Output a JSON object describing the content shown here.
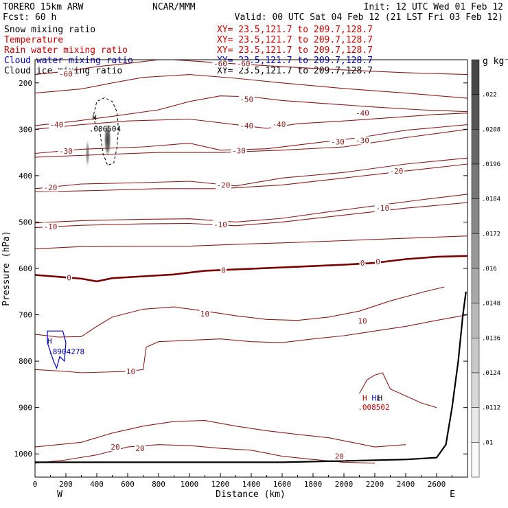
{
  "header": {
    "model": "TORERO  15km ARW",
    "center": "NCAR/MMM",
    "init": "Init: 12 UTC Wed 01 Feb 12",
    "fcst": "Fcst:   60 h",
    "valid": "Valid: 00 UTC Sat 04 Feb 12 (21 LST Fri 03 Feb 12)"
  },
  "fields": [
    {
      "name": "Snow mixing ratio",
      "xy": "XY=  23.5,121.7 to 209.7,128.7",
      "name_color": "#000000",
      "xy_color": "#cc0000"
    },
    {
      "name": "Temperature",
      "xy": "XY=  23.5,121.7 to 209.7,128.7",
      "name_color": "#cc0000",
      "xy_color": "#cc0000"
    },
    {
      "name": "Rain water mixing ratio",
      "xy": "XY=  23.5,121.7 to 209.7,128.7",
      "name_color": "#cc0000",
      "xy_color": "#cc0000"
    },
    {
      "name": "Cloud water mixing ratio",
      "xy": "XY=  23.5,121.7 to 209.7,128.7",
      "name_color": "#0000aa",
      "xy_color": "#0000aa"
    },
    {
      "name": "Cloud ice mixing ratio",
      "xy": "XY=  23.5,121.7 to 209.7,128.7",
      "name_color": "#000000",
      "xy_color": "#000000"
    }
  ],
  "colors": {
    "temperature": "#8b1a1a",
    "zero_isotherm": "#7a0000",
    "terrain": "#000000",
    "cloud_water": "#0000cc",
    "snow": "#000000",
    "rain": "#cc0000"
  },
  "chart_data": {
    "type": "cross-section",
    "xlabel": "Distance (km)",
    "ylabel": "Pressure (hPa)",
    "x_range": [
      0,
      2800
    ],
    "y_range": [
      150,
      1050
    ],
    "x_ticks": [
      "0",
      "200",
      "400",
      "600",
      "800",
      "1000",
      "1200",
      "1400",
      "1600",
      "1800",
      "2000",
      "2200",
      "2400",
      "2600"
    ],
    "x_tick_values": [
      0,
      200,
      400,
      600,
      800,
      1000,
      1200,
      1400,
      1600,
      1800,
      2000,
      2200,
      2400,
      2600
    ],
    "y_ticks": [
      "200",
      "300",
      "400",
      "500",
      "600",
      "700",
      "800",
      "900",
      "1000"
    ],
    "y_tick_values": [
      200,
      300,
      400,
      500,
      600,
      700,
      800,
      900,
      1000
    ],
    "end_labels": {
      "left": "W",
      "right": "E"
    },
    "isotherms": [
      {
        "label": "-60",
        "points": [
          [
            0,
            182
          ],
          [
            200,
            175
          ],
          [
            400,
            165
          ],
          [
            600,
            158
          ],
          [
            800,
            150
          ]
        ]
      },
      {
        "label": "-60",
        "points": [
          [
            900,
            150
          ],
          [
            1200,
            157
          ],
          [
            1600,
            165
          ],
          [
            2000,
            172
          ],
          [
            2400,
            178
          ],
          [
            2800,
            182
          ]
        ]
      },
      {
        "label": "-50",
        "points": [
          [
            0,
            222
          ],
          [
            300,
            213
          ],
          [
            500,
            200
          ],
          [
            700,
            188
          ],
          [
            1000,
            182
          ],
          [
            1300,
            190
          ],
          [
            1600,
            200
          ],
          [
            2000,
            212
          ],
          [
            2400,
            222
          ],
          [
            2800,
            233
          ]
        ]
      },
      {
        "label": "-40",
        "points": [
          [
            0,
            292
          ],
          [
            250,
            283
          ],
          [
            500,
            272
          ],
          [
            800,
            258
          ],
          [
            1000,
            240
          ],
          [
            1200,
            228
          ],
          [
            1400,
            230
          ],
          [
            1600,
            238
          ],
          [
            1900,
            245
          ],
          [
            2200,
            252
          ],
          [
            2500,
            258
          ],
          [
            2800,
            262
          ]
        ]
      },
      {
        "label": "-40",
        "points": [
          [
            0,
            300
          ],
          [
            300,
            290
          ],
          [
            600,
            282
          ],
          [
            1000,
            278
          ],
          [
            1300,
            290
          ],
          [
            1500,
            298
          ],
          [
            1700,
            288
          ],
          [
            2000,
            282
          ],
          [
            2300,
            275
          ],
          [
            2600,
            268
          ],
          [
            2800,
            265
          ]
        ]
      },
      {
        "label": "-30",
        "points": [
          [
            0,
            352
          ],
          [
            300,
            343
          ],
          [
            700,
            338
          ],
          [
            1000,
            330
          ],
          [
            1200,
            345
          ],
          [
            1500,
            342
          ],
          [
            1800,
            330
          ],
          [
            2100,
            318
          ],
          [
            2400,
            302
          ],
          [
            2800,
            290
          ]
        ]
      },
      {
        "label": "-30",
        "points": [
          [
            0,
            360
          ],
          [
            400,
            355
          ],
          [
            800,
            350
          ],
          [
            1200,
            350
          ],
          [
            1600,
            345
          ],
          [
            2000,
            338
          ],
          [
            2400,
            318
          ],
          [
            2800,
            300
          ]
        ]
      },
      {
        "label": "-20",
        "points": [
          [
            0,
            428
          ],
          [
            300,
            418
          ],
          [
            700,
            415
          ],
          [
            1000,
            412
          ],
          [
            1300,
            422
          ],
          [
            1600,
            405
          ],
          [
            2000,
            393
          ],
          [
            2400,
            375
          ],
          [
            2800,
            362
          ]
        ]
      },
      {
        "label": "-20",
        "points": [
          [
            0,
            435
          ],
          [
            400,
            432
          ],
          [
            800,
            428
          ],
          [
            1200,
            428
          ],
          [
            1600,
            420
          ],
          [
            2000,
            405
          ],
          [
            2400,
            390
          ],
          [
            2800,
            375
          ]
        ]
      },
      {
        "label": "-10",
        "points": [
          [
            0,
            502
          ],
          [
            300,
            497
          ],
          [
            700,
            494
          ],
          [
            1000,
            493
          ],
          [
            1300,
            500
          ],
          [
            1600,
            492
          ],
          [
            1900,
            478
          ],
          [
            2200,
            465
          ],
          [
            2500,
            452
          ],
          [
            2800,
            440
          ]
        ]
      },
      {
        "label": "-10",
        "points": [
          [
            0,
            512
          ],
          [
            300,
            507
          ],
          [
            700,
            504
          ],
          [
            1000,
            503
          ],
          [
            1300,
            508
          ],
          [
            1600,
            500
          ],
          [
            2000,
            485
          ],
          [
            2400,
            470
          ],
          [
            2800,
            458
          ]
        ]
      },
      {
        "label": "-10",
        "points": [
          [
            0,
            558
          ],
          [
            300,
            553
          ],
          [
            700,
            552
          ],
          [
            1000,
            552
          ],
          [
            1300,
            548
          ],
          [
            1600,
            545
          ],
          [
            2000,
            540
          ],
          [
            2400,
            535
          ],
          [
            2800,
            530
          ]
        ]
      },
      {
        "label": "0",
        "points": [
          [
            0,
            614
          ],
          [
            150,
            618
          ],
          [
            300,
            622
          ],
          [
            400,
            628
          ],
          [
            500,
            621
          ],
          [
            700,
            617
          ],
          [
            900,
            613
          ],
          [
            1100,
            605
          ],
          [
            1300,
            602
          ],
          [
            1600,
            598
          ],
          [
            2000,
            592
          ],
          [
            2200,
            588
          ],
          [
            2400,
            580
          ],
          [
            2600,
            575
          ],
          [
            2800,
            573
          ]
        ]
      },
      {
        "label": "10",
        "points": [
          [
            0,
            742
          ],
          [
            150,
            748
          ],
          [
            300,
            747
          ],
          [
            400,
            725
          ],
          [
            500,
            705
          ],
          [
            700,
            688
          ],
          [
            900,
            683
          ],
          [
            1100,
            692
          ],
          [
            1300,
            702
          ],
          [
            1500,
            710
          ],
          [
            1700,
            712
          ],
          [
            1900,
            705
          ],
          [
            2100,
            692
          ],
          [
            2300,
            670
          ],
          [
            2500,
            652
          ],
          [
            2650,
            640
          ]
        ]
      },
      {
        "label": "10",
        "points": [
          [
            0,
            818
          ],
          [
            200,
            822
          ],
          [
            300,
            825
          ],
          [
            600,
            822
          ],
          [
            700,
            818
          ],
          [
            720,
            770
          ],
          [
            800,
            758
          ],
          [
            1000,
            755
          ],
          [
            1200,
            752
          ],
          [
            1400,
            758
          ],
          [
            1600,
            760
          ],
          [
            1800,
            752
          ],
          [
            2000,
            745
          ],
          [
            2200,
            735
          ],
          [
            2400,
            725
          ],
          [
            2600,
            712
          ],
          [
            2800,
            700
          ]
        ]
      },
      {
        "label": "10",
        "points": [
          [
            2100,
            870
          ],
          [
            2150,
            840
          ],
          [
            2200,
            830
          ],
          [
            2250,
            825
          ],
          [
            2300,
            860
          ],
          [
            2400,
            875
          ],
          [
            2500,
            890
          ],
          [
            2600,
            900
          ]
        ]
      },
      {
        "label": "20",
        "points": [
          [
            0,
            985
          ],
          [
            300,
            975
          ],
          [
            500,
            955
          ],
          [
            700,
            940
          ],
          [
            900,
            930
          ],
          [
            1100,
            928
          ],
          [
            1300,
            940
          ],
          [
            1500,
            950
          ],
          [
            1700,
            958
          ],
          [
            1900,
            965
          ],
          [
            2050,
            975
          ],
          [
            2200,
            985
          ],
          [
            2400,
            980
          ]
        ]
      },
      {
        "label": "20",
        "points": [
          [
            0,
            1020
          ],
          [
            200,
            1013
          ],
          [
            400,
            1002
          ],
          [
            600,
            985
          ],
          [
            800,
            980
          ],
          [
            1000,
            982
          ],
          [
            1200,
            988
          ],
          [
            1400,
            992
          ],
          [
            1600,
            1005
          ],
          [
            1800,
            1012
          ],
          [
            2000,
            1018
          ],
          [
            2200,
            1020
          ]
        ]
      }
    ],
    "isotherm_labels": [
      {
        "text": "-60",
        "x": 200,
        "y": 180
      },
      {
        "text": "-60",
        "x": 1200,
        "y": 158
      },
      {
        "text": "-60",
        "x": 1350,
        "y": 158
      },
      {
        "text": "-50",
        "x": 1370,
        "y": 235
      },
      {
        "text": "-40",
        "x": 140,
        "y": 290
      },
      {
        "text": "-40",
        "x": 1370,
        "y": 292
      },
      {
        "text": "-40",
        "x": 1580,
        "y": 289
      },
      {
        "text": "-40",
        "x": 2120,
        "y": 265
      },
      {
        "text": "-30",
        "x": 200,
        "y": 347
      },
      {
        "text": "-30",
        "x": 1320,
        "y": 346
      },
      {
        "text": "-30",
        "x": 1960,
        "y": 327
      },
      {
        "text": "-30",
        "x": 2120,
        "y": 324
      },
      {
        "text": "-20",
        "x": 100,
        "y": 425
      },
      {
        "text": "-20",
        "x": 1220,
        "y": 420
      },
      {
        "text": "-20",
        "x": 2340,
        "y": 390
      },
      {
        "text": "-10",
        "x": 100,
        "y": 510
      },
      {
        "text": "-10",
        "x": 1200,
        "y": 505
      },
      {
        "text": "-10",
        "x": 2250,
        "y": 470
      },
      {
        "text": "0",
        "x": 220,
        "y": 620
      },
      {
        "text": "0",
        "x": 1220,
        "y": 604
      },
      {
        "text": "0",
        "x": 2120,
        "y": 588
      },
      {
        "text": "0",
        "x": 2220,
        "y": 585
      },
      {
        "text": "10",
        "x": 1100,
        "y": 698
      },
      {
        "text": "10",
        "x": 2120,
        "y": 713
      },
      {
        "text": "10",
        "x": 620,
        "y": 822
      },
      {
        "text": "20",
        "x": 520,
        "y": 985
      },
      {
        "text": "20",
        "x": 680,
        "y": 988
      },
      {
        "text": "20",
        "x": 1970,
        "y": 1005
      }
    ],
    "terrain_surface": [
      [
        0,
        1018
      ],
      [
        400,
        1018
      ],
      [
        800,
        1018
      ],
      [
        1200,
        1018
      ],
      [
        1600,
        1018
      ],
      [
        2000,
        1015
      ],
      [
        2400,
        1012
      ],
      [
        2600,
        1008
      ],
      [
        2660,
        980
      ],
      [
        2700,
        900
      ],
      [
        2740,
        800
      ],
      [
        2770,
        700
      ],
      [
        2790,
        650
      ]
    ],
    "cloud_ice_shading": [
      {
        "x": 470,
        "y": 322,
        "rx": 50,
        "ry": 40,
        "intensity": 0.9
      },
      {
        "x": 340,
        "y": 352,
        "rx": 28,
        "ry": 32,
        "intensity": 0.55
      }
    ],
    "snow_outline": [
      [
        380,
        268
      ],
      [
        400,
        240
      ],
      [
        450,
        232
      ],
      [
        500,
        240
      ],
      [
        530,
        262
      ],
      [
        540,
        300
      ],
      [
        530,
        340
      ],
      [
        510,
        372
      ],
      [
        470,
        378
      ],
      [
        440,
        352
      ],
      [
        420,
        305
      ],
      [
        390,
        290
      ],
      [
        380,
        268
      ]
    ],
    "cloud_water_outline": [
      [
        80,
        735
      ],
      [
        180,
        735
      ],
      [
        200,
        760
      ],
      [
        190,
        800
      ],
      [
        160,
        790
      ],
      [
        140,
        815
      ],
      [
        120,
        800
      ],
      [
        100,
        780
      ],
      [
        80,
        760
      ],
      [
        80,
        735
      ]
    ],
    "markers": [
      {
        "text": "H",
        "x": 370,
        "y": 280,
        "color": "#000000"
      },
      {
        "text": ".006504",
        "x": 350,
        "y": 305,
        "color": "#000000"
      },
      {
        "text": "H",
        "x": 80,
        "y": 762,
        "color": "#000080"
      },
      {
        "text": ".8904278",
        "x": 85,
        "y": 785,
        "color": "#0000aa"
      },
      {
        "text": "H",
        "x": 2120,
        "y": 885,
        "color": "#aa0000"
      },
      {
        "text": "HL",
        "x": 2180,
        "y": 885,
        "color": "#0000aa"
      },
      {
        "text": ".008502",
        "x": 2090,
        "y": 905,
        "color": "#cc0000"
      },
      {
        "text": "H",
        "x": 2220,
        "y": 885,
        "color": "#000000"
      }
    ],
    "colorbar": {
      "unit": "g kg⁻¹",
      "labels": [
        ".022",
        ".0208",
        ".0196",
        ".0184",
        ".0172",
        ".016",
        ".0148",
        ".0136",
        ".0124",
        ".0112",
        ".01"
      ],
      "levels": 12
    }
  }
}
